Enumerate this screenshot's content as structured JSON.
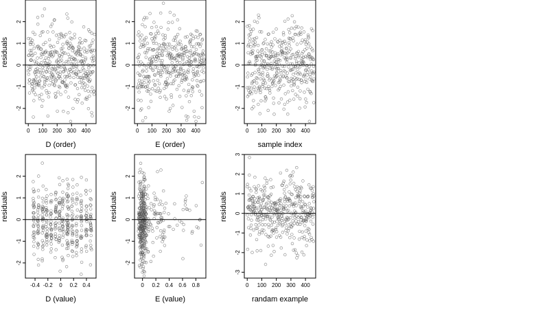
{
  "chart_data": [
    {
      "type": "scatter",
      "xlabel": "D (order)",
      "ylabel": "residuals",
      "xlim": [
        -20,
        470
      ],
      "ylim": [
        -2.7,
        3.0
      ],
      "xticks": [
        0,
        100,
        200,
        300,
        400
      ],
      "yticks": [
        -2,
        -1,
        0,
        1,
        2
      ],
      "hline": 0,
      "dist": "uniform",
      "n": 420,
      "seed": 11,
      "points_note": ""
    },
    {
      "type": "scatter",
      "xlabel": "E (order)",
      "ylabel": "residuals",
      "xlim": [
        -20,
        470
      ],
      "ylim": [
        -2.7,
        3.0
      ],
      "xticks": [
        0,
        100,
        200,
        300,
        400
      ],
      "yticks": [
        -2,
        -1,
        0,
        1,
        2
      ],
      "hline": 0,
      "dist": "uniform",
      "n": 420,
      "seed": 23
    },
    {
      "type": "scatter",
      "xlabel": "sample index",
      "ylabel": "residuals",
      "xlim": [
        -20,
        470
      ],
      "ylim": [
        -2.7,
        3.0
      ],
      "xticks": [
        0,
        100,
        200,
        300,
        400
      ],
      "yticks": [
        -2,
        -1,
        0,
        1,
        2
      ],
      "hline": 0,
      "dist": "uniform",
      "n": 420,
      "seed": 37
    },
    {
      "type": "scatter",
      "xlabel": "D (value)",
      "ylabel": "residuals",
      "xlim": [
        -0.55,
        0.55
      ],
      "ylim": [
        -2.7,
        3.0
      ],
      "xticks": [
        -0.4,
        -0.2,
        0.0,
        0.2,
        0.4
      ],
      "yticks": [
        -2,
        -1,
        0,
        1,
        2
      ],
      "hline": 0,
      "dist": "columns",
      "columns": [
        -0.42,
        -0.35,
        -0.28,
        -0.22,
        -0.15,
        -0.08,
        -0.02,
        0.03,
        0.1,
        0.12,
        0.18,
        0.25,
        0.32,
        0.4,
        0.47
      ],
      "n": 420,
      "seed": 53
    },
    {
      "type": "scatter",
      "xlabel": "E (value)",
      "ylabel": "residuals",
      "xlim": [
        -0.12,
        0.95
      ],
      "ylim": [
        -2.7,
        3.0
      ],
      "xticks": [
        0.0,
        0.2,
        0.4,
        0.6,
        0.8
      ],
      "yticks": [
        -2,
        -1,
        0,
        1,
        2
      ],
      "hline": 0,
      "dist": "skewed",
      "n": 420,
      "seed": 71
    },
    {
      "type": "scatter",
      "xlabel": "randam example",
      "ylabel": "residuals",
      "xlim": [
        -20,
        470
      ],
      "ylim": [
        -3.3,
        3.0
      ],
      "xticks": [
        0,
        100,
        200,
        300,
        400
      ],
      "yticks": [
        -3,
        -2,
        -1,
        0,
        1,
        2,
        3
      ],
      "hline": 0,
      "dist": "uniform",
      "n": 420,
      "seed": 97
    }
  ]
}
